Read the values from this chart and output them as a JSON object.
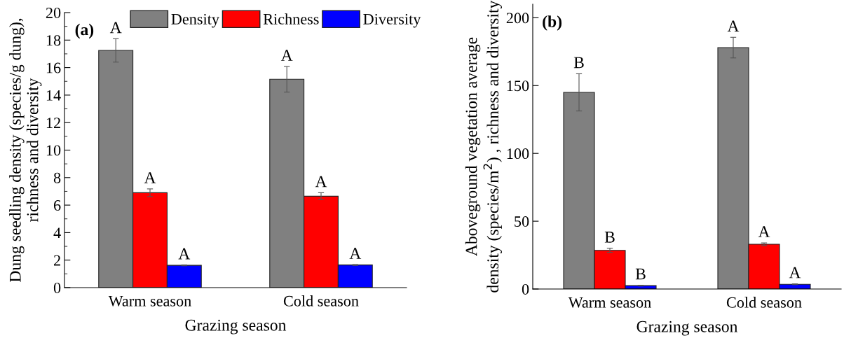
{
  "chart_data": [
    {
      "type": "bar",
      "title": "(a)",
      "xlabel": "Grazing season",
      "ylabel": "Dung seedling density (species/g dung),\nrichness and diversity",
      "categories": [
        "Warm season",
        "Cold season"
      ],
      "series": [
        {
          "name": "Density",
          "color": "#808080",
          "values": [
            17.25,
            15.15
          ],
          "errors": [
            0.85,
            0.93
          ],
          "value_labels": [
            "A",
            "A"
          ]
        },
        {
          "name": "Richness",
          "color": "#ff0000",
          "values": [
            6.9,
            6.65
          ],
          "errors": [
            0.28,
            0.25
          ],
          "value_labels": [
            "A",
            "A"
          ]
        },
        {
          "name": "Diversity",
          "color": "#0000ff",
          "values": [
            1.62,
            1.65
          ],
          "errors": [
            0.03,
            0.03
          ],
          "value_labels": [
            "A",
            "A"
          ]
        }
      ],
      "ylim": [
        0,
        20
      ],
      "yticks": [
        0,
        2,
        4,
        6,
        8,
        10,
        12,
        14,
        16,
        18,
        20
      ],
      "grid": false,
      "legend": "top right"
    },
    {
      "type": "bar",
      "title": "(b)",
      "xlabel": "Grazing season",
      "ylabel": "Aboveground vegetation average\ndensity (species/m$^{2}$) , richness and diversity",
      "categories": [
        "Warm season",
        "Cold season"
      ],
      "series": [
        {
          "color": "#808080",
          "values": [
            145,
            178
          ],
          "errors": [
            13.7,
            7.6
          ],
          "value_labels": [
            "B",
            "A"
          ]
        },
        {
          "color": "#ff0000",
          "values": [
            28.5,
            33
          ],
          "errors": [
            1.5,
            1
          ],
          "value_labels": [
            "B",
            "A"
          ]
        },
        {
          "color": "#0000ff",
          "values": [
            2.5,
            3.5
          ],
          "errors": [
            0.3,
            0.3
          ],
          "value_labels": [
            "B",
            "A"
          ]
        }
      ],
      "ylim": [
        0,
        210
      ],
      "yticks": [
        0,
        50,
        100,
        150,
        200
      ],
      "grid": false,
      "legend": false
    }
  ]
}
